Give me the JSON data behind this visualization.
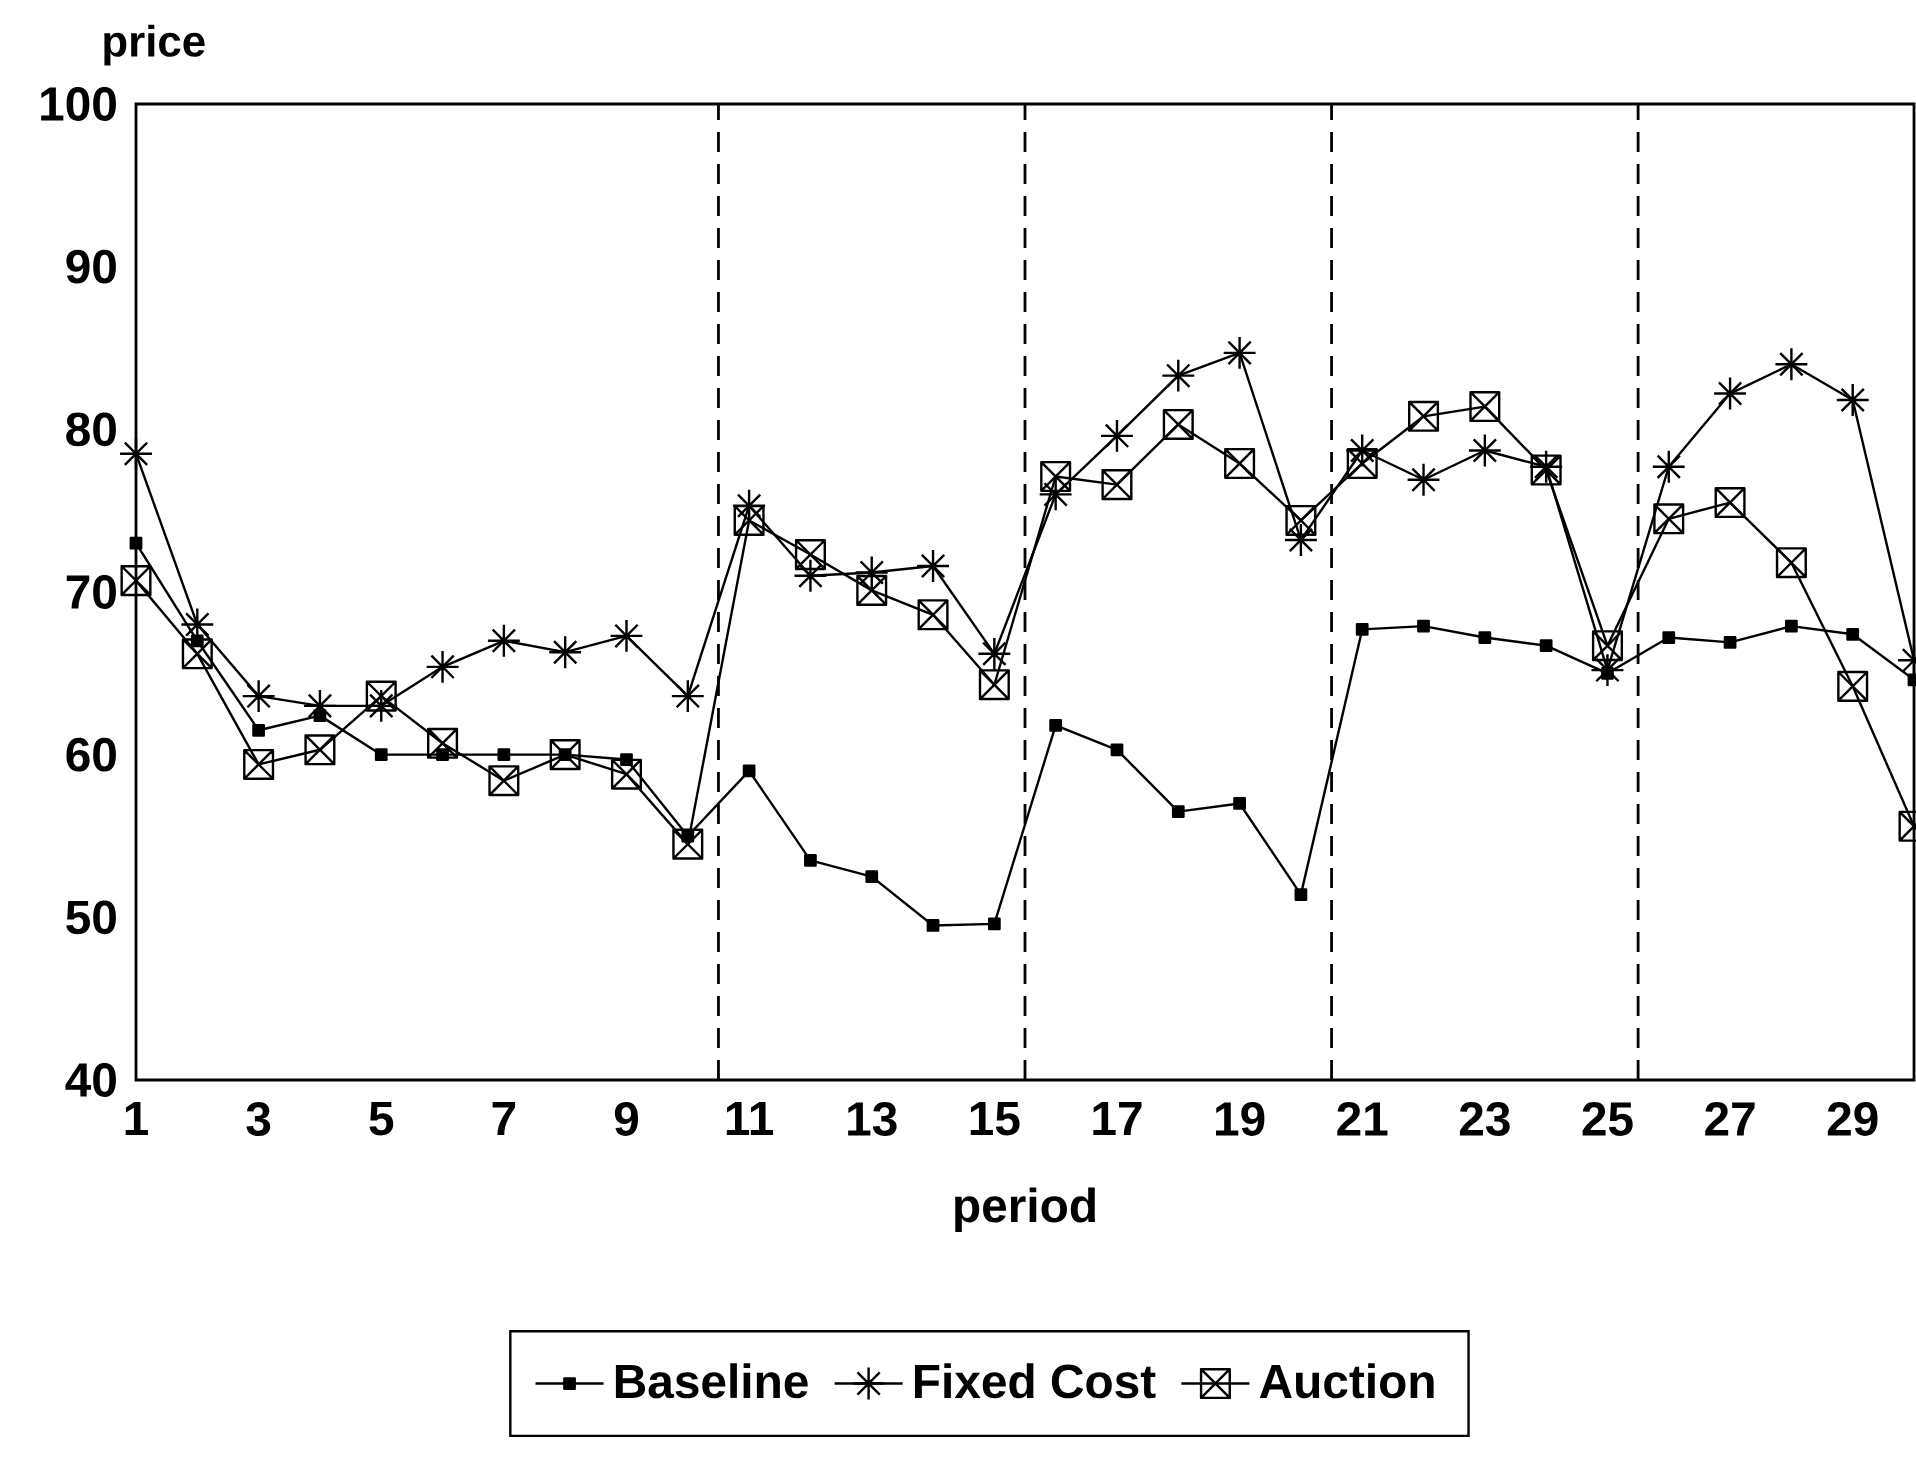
{
  "chart_data": {
    "type": "line",
    "xlabel": "period",
    "ylabel": "price",
    "x": [
      1,
      2,
      3,
      4,
      5,
      6,
      7,
      8,
      9,
      10,
      11,
      12,
      13,
      14,
      15,
      16,
      17,
      18,
      19,
      20,
      21,
      22,
      23,
      24,
      25,
      26,
      27,
      28,
      29,
      30
    ],
    "series": [
      {
        "name": "Baseline",
        "color": "#000000",
        "marker": "square",
        "values": [
          73,
          67,
          61.5,
          62.4,
          60,
          60,
          60,
          60,
          59.7,
          55,
          59,
          53.5,
          52.5,
          49.5,
          49.6,
          61.8,
          60.3,
          56.5,
          57,
          51.4,
          67.7,
          67.9,
          67.2,
          66.7,
          65,
          67.2,
          66.9,
          67.9,
          67.4,
          64.6
        ]
      },
      {
        "name": "Fixed Cost",
        "color": "#000000",
        "marker": "cross",
        "values": [
          78.5,
          68,
          63.6,
          63,
          63,
          65.4,
          67,
          66.3,
          67.3,
          63.6,
          75.3,
          71,
          71.2,
          71.6,
          66.2,
          76,
          79.6,
          83.3,
          84.7,
          73.2,
          78.7,
          76.9,
          78.7,
          77.7,
          65.2,
          77.7,
          82.2,
          84,
          81.8,
          65.8
        ]
      },
      {
        "name": "Auction",
        "color": "#000000",
        "marker": "cross",
        "values": [
          70.7,
          66.2,
          59.4,
          60.3,
          63.6,
          60.7,
          58.4,
          60,
          58.8,
          54.5,
          74.4,
          72.3,
          70.1,
          68.6,
          64.3,
          77.1,
          76.6,
          80.3,
          77.9,
          74.4,
          77.9,
          80.8,
          81.4,
          77.5,
          66.7,
          74.5,
          75.5,
          71.8,
          64.2,
          55.6
        ]
      }
    ],
    "xlim": [
      1,
      30
    ],
    "ylim": [
      40,
      100
    ],
    "xticks": [
      1,
      3,
      5,
      7,
      9,
      11,
      13,
      15,
      17,
      19,
      21,
      23,
      25,
      27,
      29
    ],
    "yticks": [
      40,
      50,
      60,
      70,
      80,
      90,
      100
    ],
    "ref_lines": [
      {
        "axis": "x",
        "value": 10.5,
        "line_style": "dashed"
      },
      {
        "axis": "x",
        "value": 15.5,
        "line_style": "dashed"
      },
      {
        "axis": "x",
        "value": 20.5,
        "line_style": "dashed"
      },
      {
        "axis": "x",
        "value": 25.5,
        "line_style": "dashed"
      }
    ],
    "grid": false,
    "legend": "bottom",
    "line_style": "solid"
  }
}
